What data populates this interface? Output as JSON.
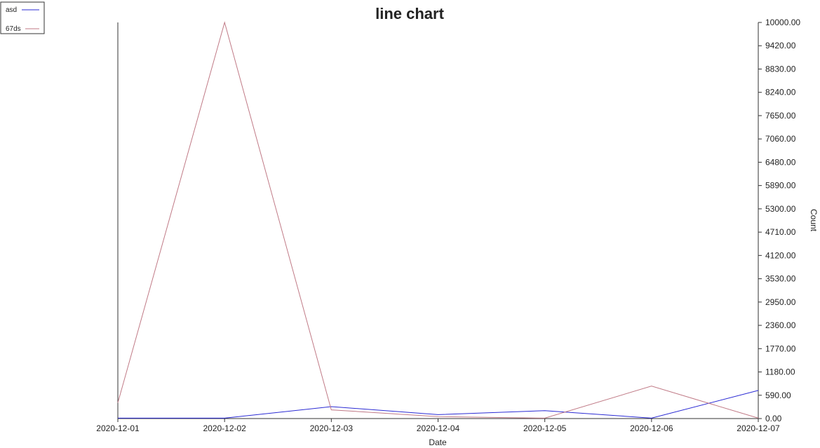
{
  "chart_data": {
    "type": "line",
    "title": "line chart",
    "xlabel": "Date",
    "ylabel": "Count",
    "x": [
      "2020-12-01",
      "2020-12-02",
      "2020-12-03",
      "2020-12-04",
      "2020-12-05",
      "2020-12-06",
      "2020-12-07"
    ],
    "yticks": [
      "0.00",
      "590.00",
      "1180.00",
      "1770.00",
      "2360.00",
      "2950.00",
      "3530.00",
      "4120.00",
      "4710.00",
      "5300.00",
      "5890.00",
      "6480.00",
      "7060.00",
      "7650.00",
      "8240.00",
      "8830.00",
      "9420.00",
      "10000.00"
    ],
    "ylim": [
      0,
      10000
    ],
    "y_axis_side": "right",
    "grid": false,
    "legend_position": "top-left",
    "series": [
      {
        "name": "asd",
        "color": "#2b2bd4",
        "values": [
          10,
          10,
          300,
          100,
          200,
          10,
          710
        ]
      },
      {
        "name": "67ds",
        "color": "#c07a86",
        "values": [
          400,
          10000,
          220,
          50,
          10,
          820,
          10
        ]
      }
    ]
  }
}
